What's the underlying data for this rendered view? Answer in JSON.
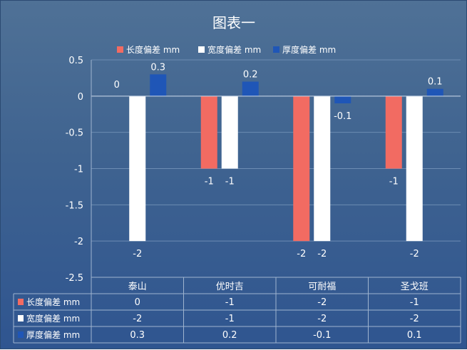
{
  "chart_data": {
    "type": "bar",
    "title": "图表一",
    "categories": [
      "泰山",
      "优时吉",
      "可耐福",
      "圣戈班"
    ],
    "series": [
      {
        "name": "长度偏差 mm",
        "values": [
          0,
          -1,
          -2,
          -1
        ],
        "color": "#f26b62"
      },
      {
        "name": "宽度偏差 mm",
        "values": [
          -2,
          -1,
          -2,
          -2
        ],
        "color": "#ffffff"
      },
      {
        "name": "厚度偏差 mm",
        "values": [
          0.3,
          0.2,
          -0.1,
          0.1
        ],
        "color": "#1f56b7"
      }
    ],
    "ylim": [
      -2.5,
      0.5
    ],
    "yticks": [
      "0.5",
      "0",
      "-0.5",
      "-1",
      "-1.5",
      "-2",
      "-2.5"
    ],
    "data_labels": [
      [
        "0",
        "-1",
        "-2",
        "-1"
      ],
      [
        "-2",
        "-1",
        "-2",
        "-2"
      ],
      [
        "0.3",
        "0.2",
        "-0.1",
        "0.1"
      ]
    ],
    "grid": true,
    "legend_position": "top",
    "data_table": true
  }
}
